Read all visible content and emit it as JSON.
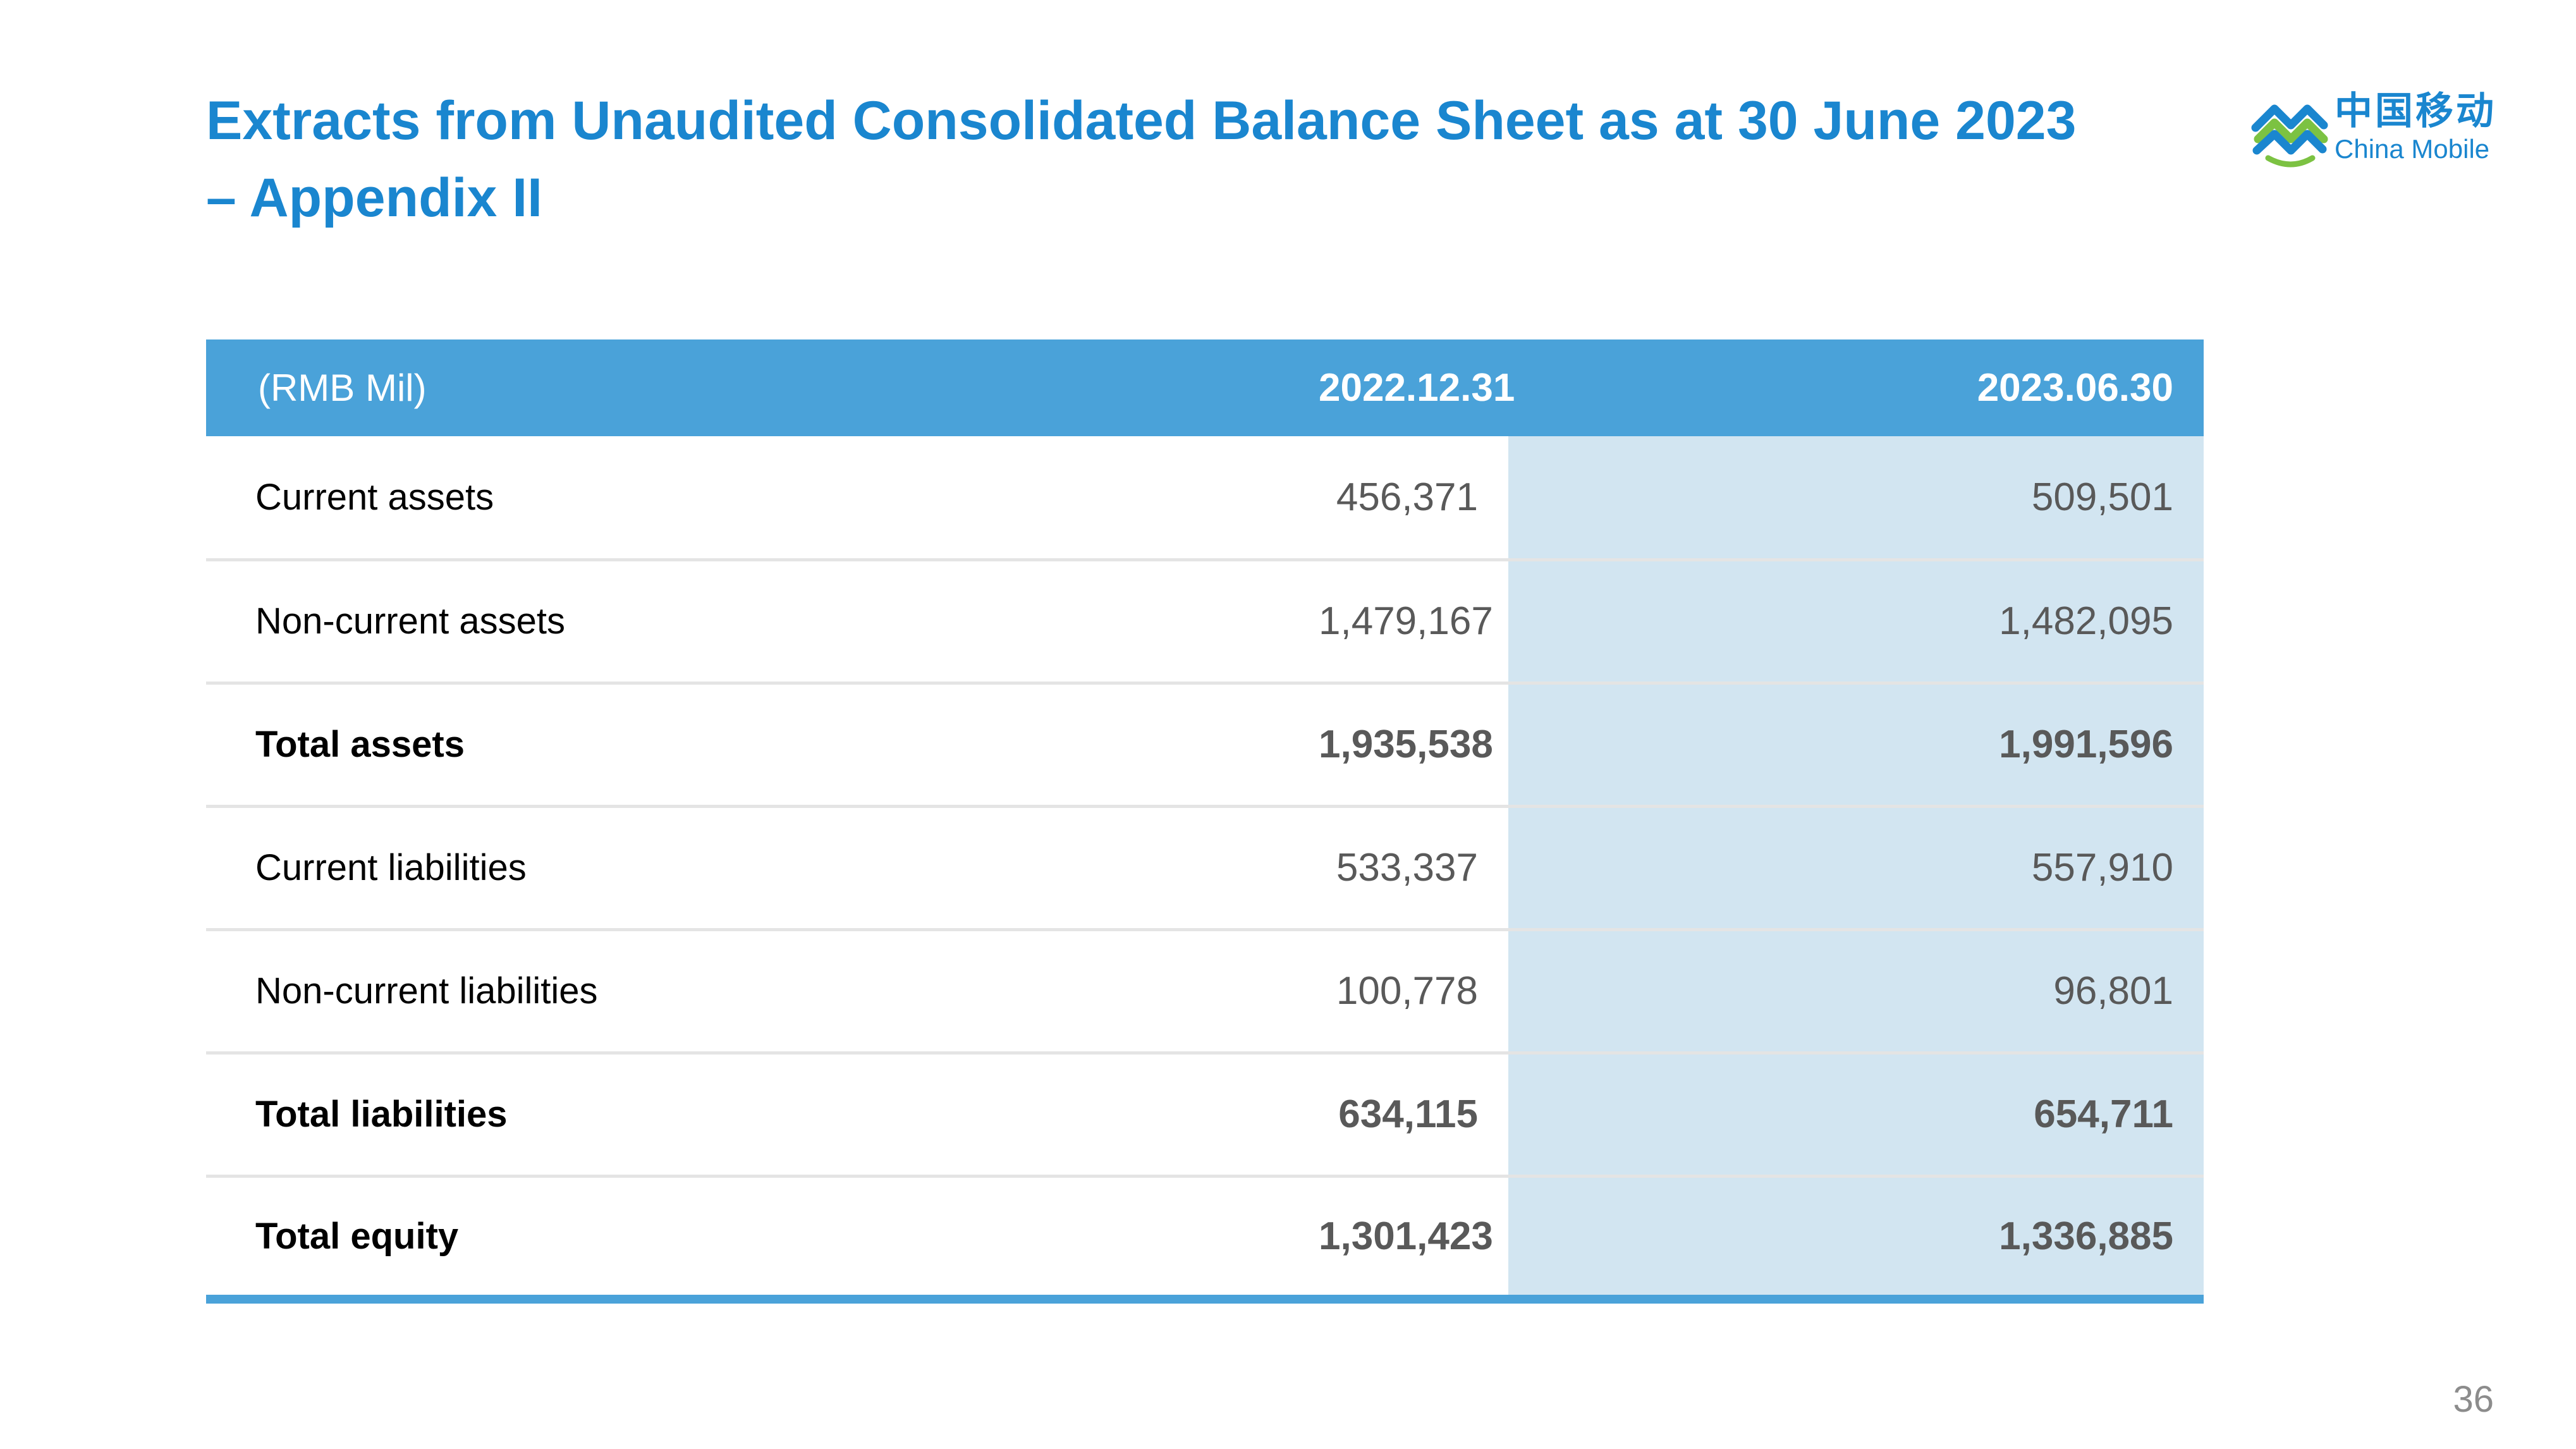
{
  "title": {
    "line1": "Extracts from Unaudited Consolidated Balance Sheet as at 30 June 2023",
    "line2": "– Appendix II"
  },
  "logo": {
    "chinese": "中国移动",
    "english": "China Mobile",
    "icon": "china-mobile-logo-icon",
    "colors": {
      "blue": "#1a86cf",
      "green": "#7cc242"
    }
  },
  "table": {
    "headers": [
      "(RMB Mil)",
      "2022.12.31",
      "2023.06.30"
    ],
    "rows": [
      {
        "label": "Current assets",
        "v2022": "456,371",
        "v2023": "509,501",
        "bold": false
      },
      {
        "label": "Non-current assets",
        "v2022": "1,479,167",
        "v2023": "1,482,095",
        "bold": false
      },
      {
        "label": "Total assets",
        "v2022": "1,935,538",
        "v2023": "1,991,596",
        "bold": true
      },
      {
        "label": "Current liabilities",
        "v2022": "533,337",
        "v2023": "557,910",
        "bold": false
      },
      {
        "label": "Non-current liabilities",
        "v2022": "100,778",
        "v2023": "96,801",
        "bold": false
      },
      {
        "label": "Total liabilities",
        "v2022": "634,115",
        "v2023": "654,711",
        "bold": true
      },
      {
        "label": "Total equity",
        "v2022": "1,301,423",
        "v2023": "1,336,885",
        "bold": true
      }
    ]
  },
  "page_number": "36",
  "colors": {
    "accent": "#1a86cf",
    "header_bg": "#4aa2d9",
    "highlight_column": "#d2e5f1"
  }
}
